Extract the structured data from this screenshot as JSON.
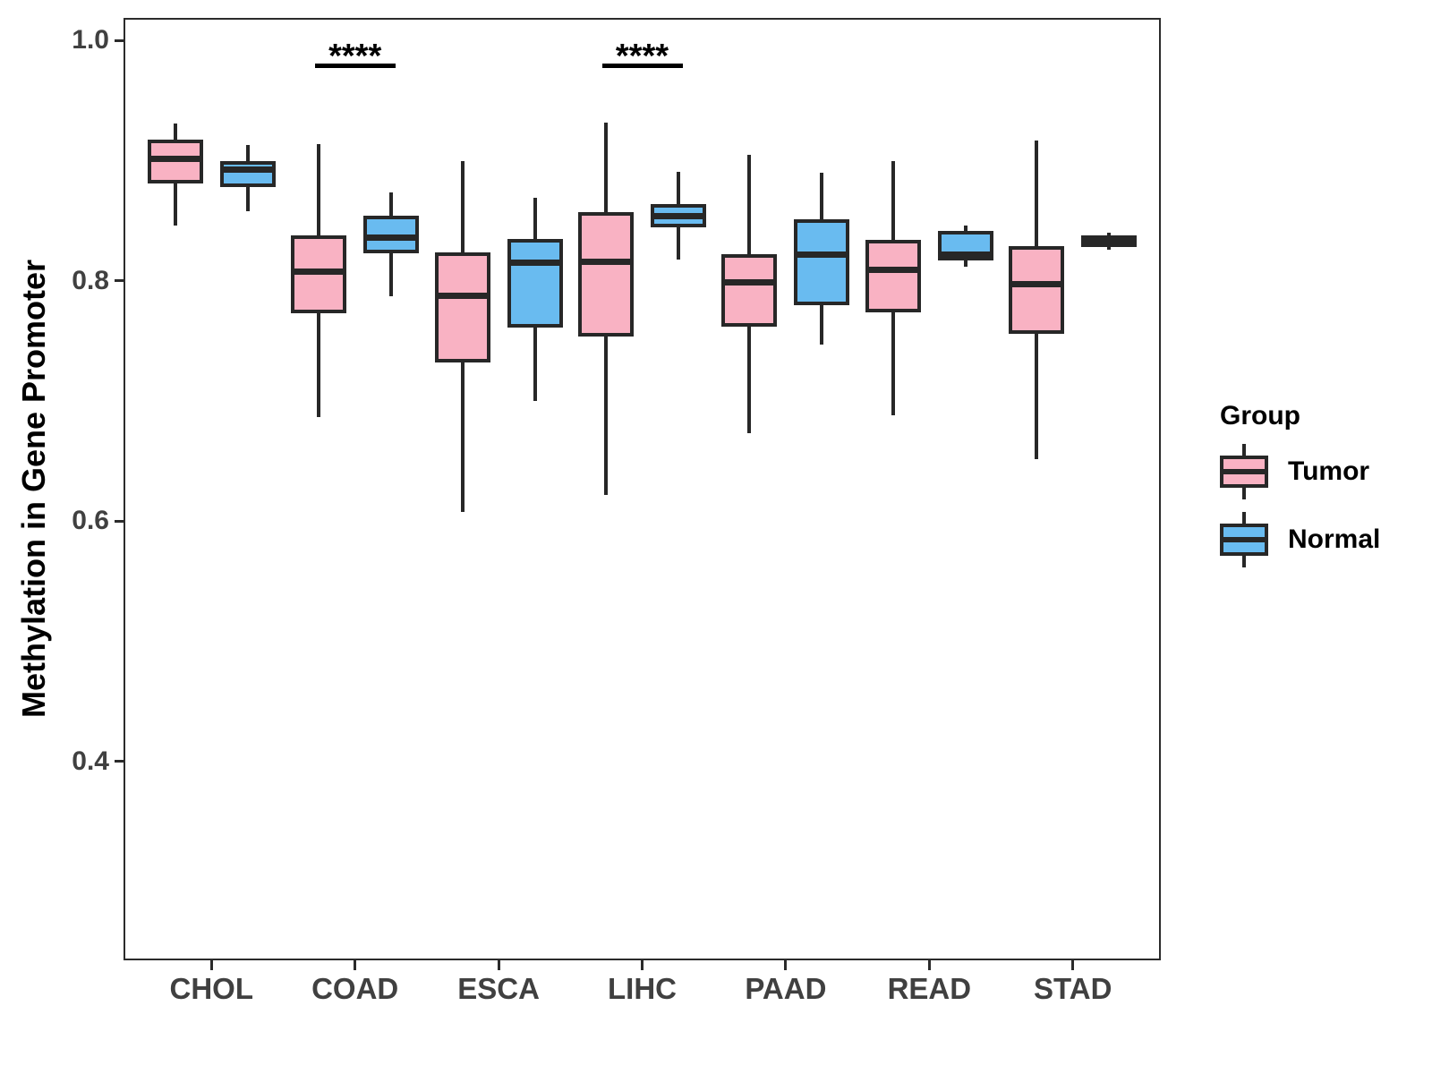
{
  "chart_data": {
    "type": "boxplot",
    "title": "",
    "xlabel": "",
    "ylabel": "Methylation in Gene Promoter",
    "categories": [
      "CHOL",
      "COAD",
      "ESCA",
      "LIHC",
      "PAAD",
      "READ",
      "STAD"
    ],
    "groups": [
      {
        "name": "Tumor",
        "color": "#F9B2C3"
      },
      {
        "name": "Normal",
        "color": "#69BBF0"
      }
    ],
    "y_axis": {
      "ticks": [
        1.0,
        0.8,
        0.6,
        0.4
      ],
      "tick_labels": [
        "1.0",
        "0.8",
        "0.6",
        "0.4"
      ],
      "domain": [
        0.236,
        1.0175
      ]
    },
    "series": [
      {
        "name": "Tumor",
        "boxes": [
          {
            "category": "CHOL",
            "min": 0.846,
            "q1": 0.881,
            "median": 0.902,
            "q3": 0.918,
            "max": 0.931
          },
          {
            "category": "COAD",
            "min": 0.687,
            "q1": 0.773,
            "median": 0.808,
            "q3": 0.838,
            "max": 0.914
          },
          {
            "category": "ESCA",
            "min": 0.608,
            "q1": 0.732,
            "median": 0.788,
            "q3": 0.824,
            "max": 0.9
          },
          {
            "category": "LIHC",
            "min": 0.622,
            "q1": 0.754,
            "median": 0.816,
            "q3": 0.857,
            "max": 0.932
          },
          {
            "category": "PAAD",
            "min": 0.673,
            "q1": 0.762,
            "median": 0.799,
            "q3": 0.822,
            "max": 0.905
          },
          {
            "category": "READ",
            "min": 0.688,
            "q1": 0.774,
            "median": 0.809,
            "q3": 0.834,
            "max": 0.9
          },
          {
            "category": "STAD",
            "min": 0.652,
            "q1": 0.756,
            "median": 0.797,
            "q3": 0.829,
            "max": 0.917
          }
        ]
      },
      {
        "name": "Normal",
        "boxes": [
          {
            "category": "CHOL",
            "min": 0.858,
            "q1": 0.878,
            "median": 0.893,
            "q3": 0.9,
            "max": 0.913
          },
          {
            "category": "COAD",
            "min": 0.787,
            "q1": 0.823,
            "median": 0.836,
            "q3": 0.854,
            "max": 0.874
          },
          {
            "category": "ESCA",
            "min": 0.7,
            "q1": 0.761,
            "median": 0.815,
            "q3": 0.835,
            "max": 0.869
          },
          {
            "category": "LIHC",
            "min": 0.818,
            "q1": 0.845,
            "median": 0.854,
            "q3": 0.864,
            "max": 0.891
          },
          {
            "category": "PAAD",
            "min": 0.747,
            "q1": 0.78,
            "median": 0.822,
            "q3": 0.851,
            "max": 0.89
          },
          {
            "category": "READ",
            "min": 0.812,
            "q1": 0.817,
            "median": 0.822,
            "q3": 0.842,
            "max": 0.846
          },
          {
            "category": "STAD",
            "min": 0.826,
            "q1": 0.828,
            "median": 0.833,
            "q3": 0.838,
            "max": 0.84
          }
        ]
      }
    ],
    "annotations": [
      {
        "category": "COAD",
        "label": "****"
      },
      {
        "category": "LIHC",
        "label": "****"
      }
    ],
    "legend": {
      "title": "Group",
      "entries": [
        "Tumor",
        "Normal"
      ]
    },
    "style_colors": {
      "box_border": "#272727",
      "panel_border": "#2b2b2b",
      "tick_label": "#404040",
      "annotation": "#000000"
    }
  }
}
